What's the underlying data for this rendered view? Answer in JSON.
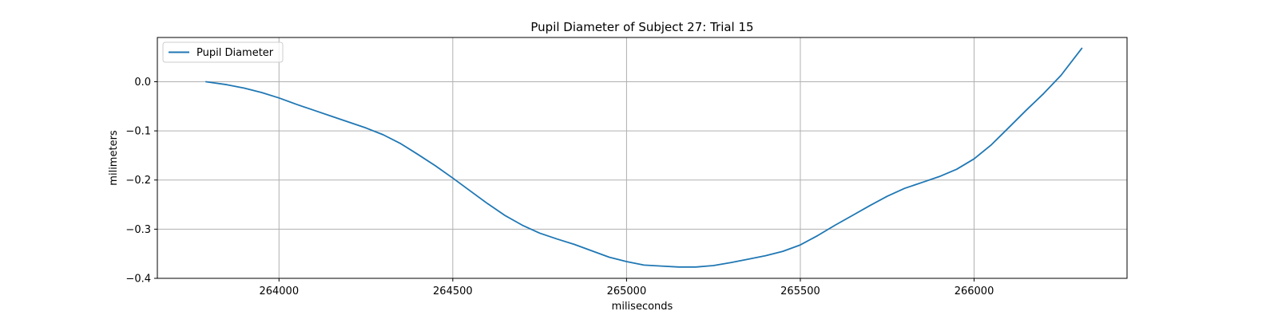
{
  "chart_data": {
    "type": "line",
    "title": "Pupil Diameter of Subject 27: Trial 15",
    "xlabel": "miliseconds",
    "ylabel": "milimeters",
    "xlim": [
      263650,
      266440
    ],
    "ylim": [
      -0.4,
      0.09
    ],
    "xticks": [
      264000,
      264500,
      265000,
      265500,
      266000
    ],
    "xtick_labels": [
      "264000",
      "264500",
      "265000",
      "265500",
      "266000"
    ],
    "yticks": [
      0.0,
      -0.1,
      -0.2,
      -0.3,
      -0.4
    ],
    "ytick_labels": [
      "0.0",
      "−0.1",
      "−0.2",
      "−0.3",
      "−0.4"
    ],
    "grid": true,
    "legend_position": "top-left",
    "colors": {
      "line": "#1f77b4",
      "grid": "#b0b0b0",
      "axes": "#000000"
    },
    "series": [
      {
        "name": "Pupil Diameter",
        "x": [
          263790,
          263850,
          263900,
          263950,
          264000,
          264050,
          264100,
          264150,
          264200,
          264250,
          264300,
          264350,
          264400,
          264450,
          264500,
          264550,
          264600,
          264650,
          264700,
          264750,
          264800,
          264850,
          264900,
          264950,
          265000,
          265050,
          265100,
          265150,
          265200,
          265250,
          265300,
          265350,
          265400,
          265450,
          265500,
          265550,
          265600,
          265650,
          265700,
          265750,
          265800,
          265850,
          265900,
          265950,
          266000,
          266050,
          266100,
          266150,
          266200,
          266250,
          266310
        ],
        "y": [
          0.0,
          -0.006,
          -0.013,
          -0.022,
          -0.033,
          -0.046,
          -0.058,
          -0.07,
          -0.082,
          -0.094,
          -0.108,
          -0.126,
          -0.148,
          -0.171,
          -0.196,
          -0.222,
          -0.248,
          -0.272,
          -0.292,
          -0.308,
          -0.32,
          -0.331,
          -0.344,
          -0.357,
          -0.366,
          -0.373,
          -0.375,
          -0.377,
          -0.377,
          -0.374,
          -0.368,
          -0.361,
          -0.354,
          -0.345,
          -0.332,
          -0.313,
          -0.292,
          -0.272,
          -0.252,
          -0.233,
          -0.217,
          -0.205,
          -0.193,
          -0.178,
          -0.157,
          -0.128,
          -0.093,
          -0.058,
          -0.024,
          0.013,
          0.068
        ]
      }
    ]
  }
}
